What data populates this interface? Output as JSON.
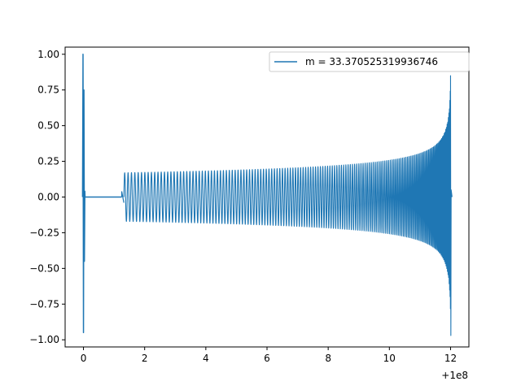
{
  "chart_data": {
    "type": "line",
    "title": "",
    "xlabel": "",
    "ylabel": "",
    "x_offset_label": "+1e8",
    "xlim": [
      -0.6,
      12.6
    ],
    "ylim": [
      -1.05,
      1.05
    ],
    "xticks": [
      0,
      2,
      4,
      6,
      8,
      10,
      12
    ],
    "xtick_labels": [
      "0",
      "2",
      "4",
      "6",
      "8",
      "10",
      "12"
    ],
    "yticks": [
      -1.0,
      -0.75,
      -0.5,
      -0.25,
      0.0,
      0.25,
      0.5,
      0.75,
      1.0
    ],
    "ytick_labels": [
      "−1.00",
      "−0.75",
      "−0.50",
      "−0.25",
      "0.00",
      "0.25",
      "0.50",
      "0.75",
      "1.00"
    ],
    "grid": false,
    "legend_position": "upper right",
    "series": [
      {
        "name": "m = 33.370525319936746",
        "color": "#1f77b4",
        "segments": [
          {
            "kind": "initial_spike",
            "x": 0.0,
            "y_max": 1.0,
            "y_min": -0.95
          },
          {
            "kind": "flat",
            "x": [
              0.05,
              1.25
            ],
            "y": 0.0
          },
          {
            "kind": "ramp_up",
            "x": [
              1.25,
              1.32
            ],
            "y_max": 0.04
          },
          {
            "kind": "oscillation",
            "x": [
              1.32,
              12.0
            ],
            "amplitude_start": 0.17,
            "amplitude_end_max": 0.85,
            "amplitude_end_min": -0.97
          }
        ]
      }
    ]
  }
}
